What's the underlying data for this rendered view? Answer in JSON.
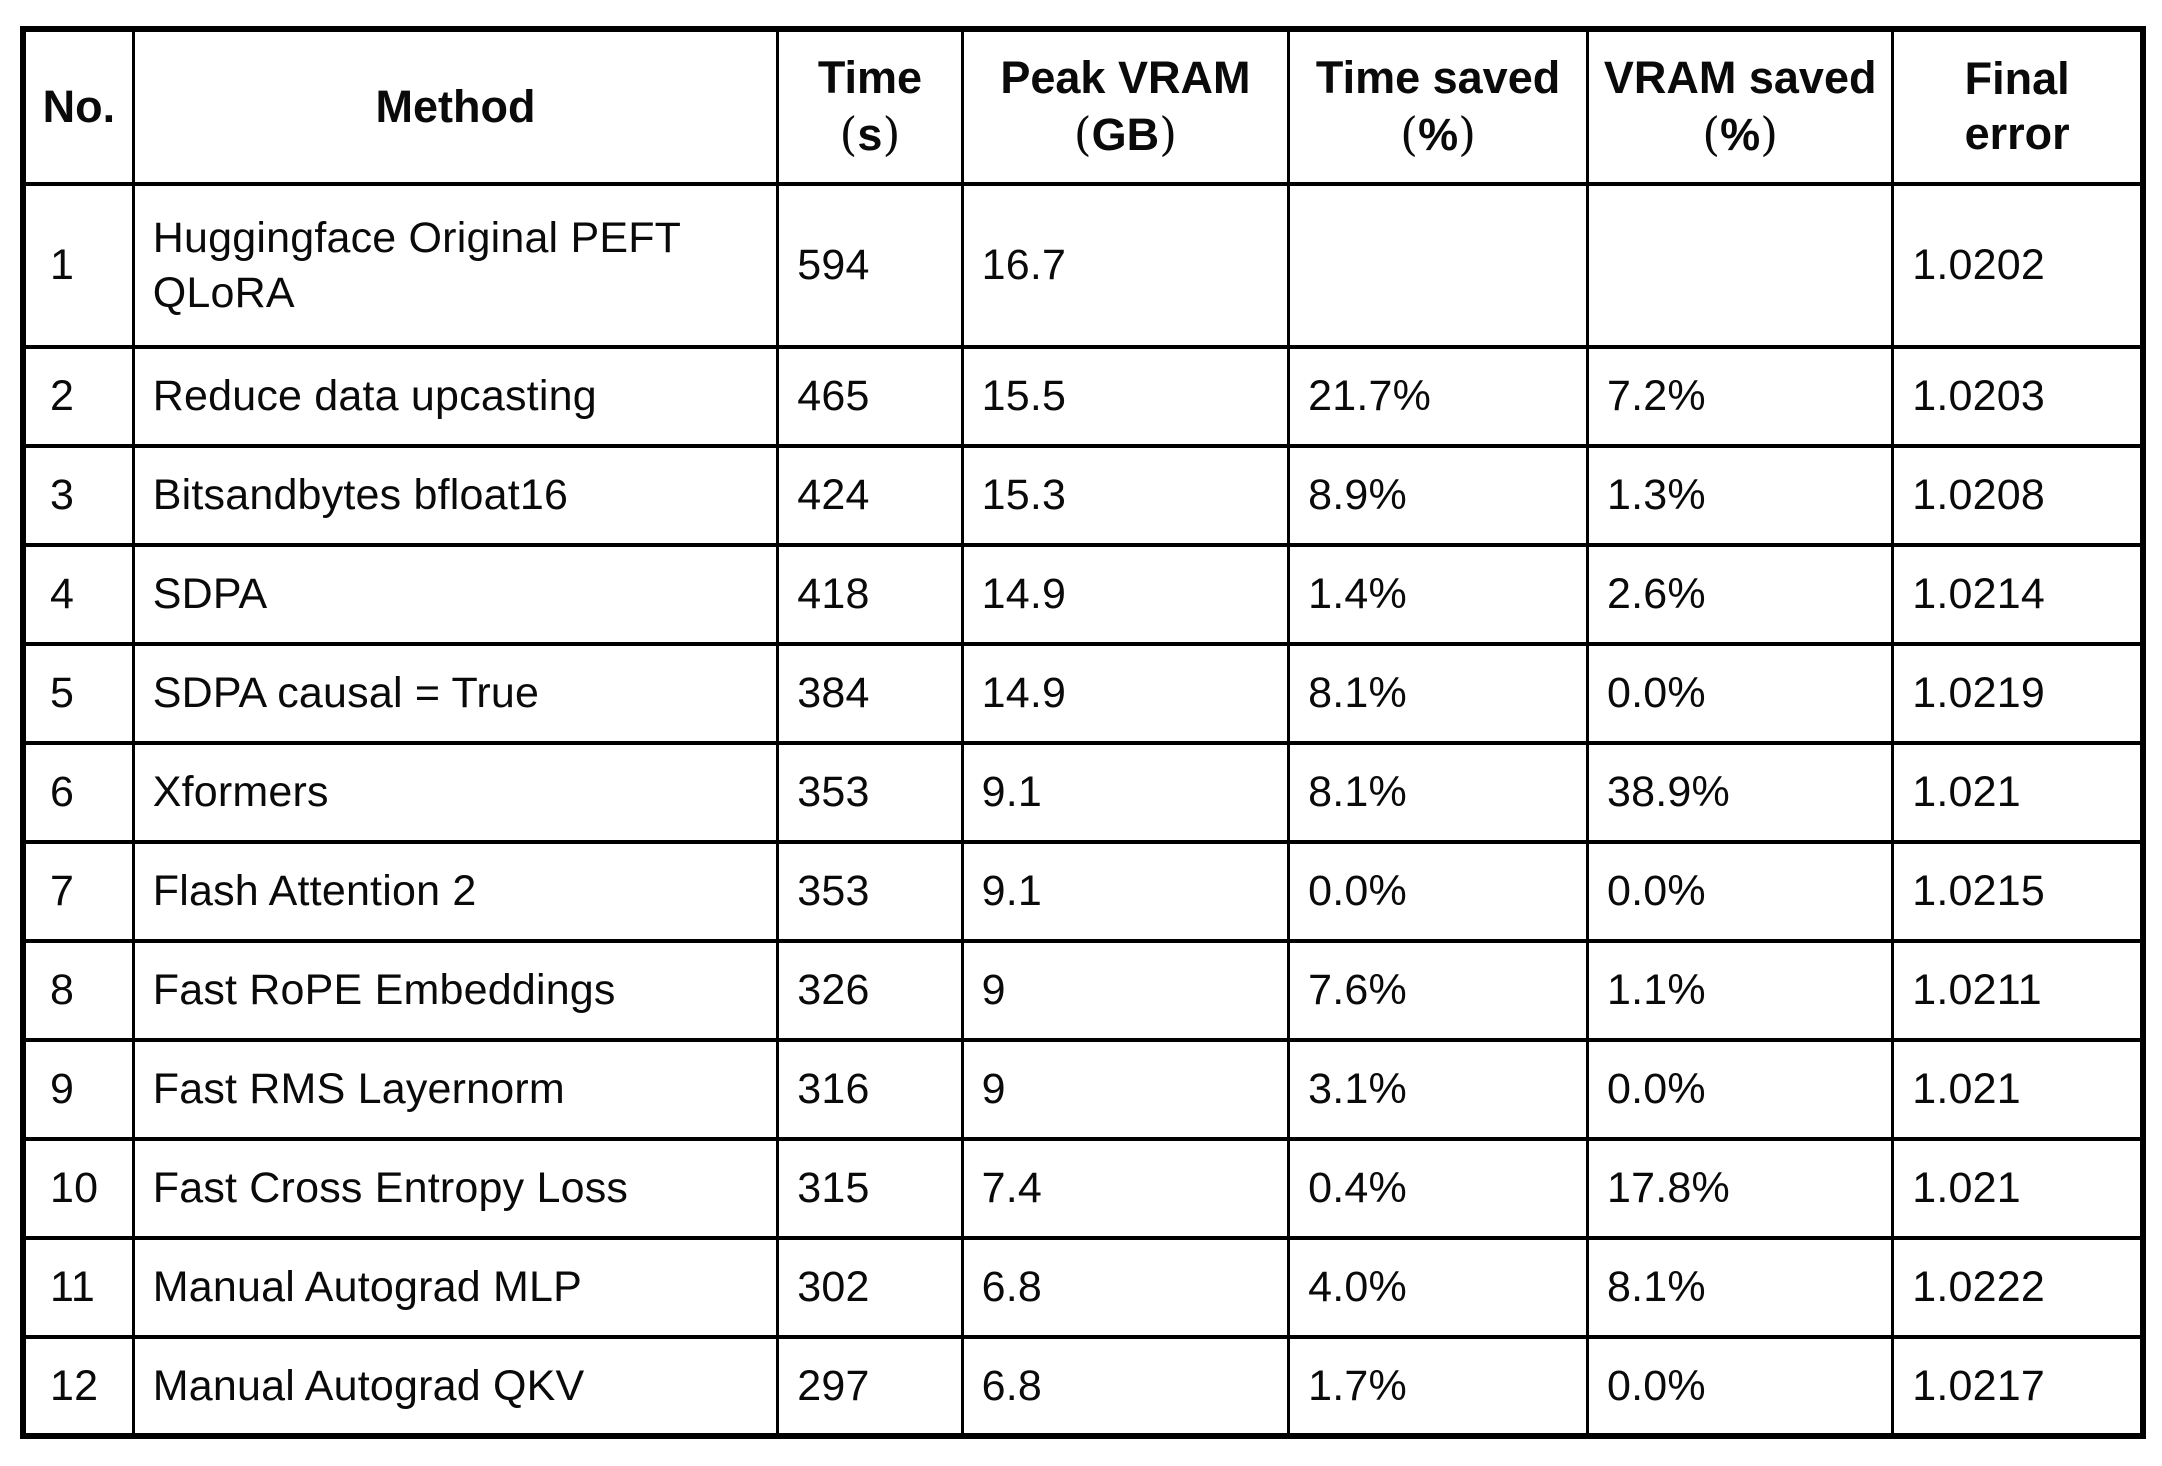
{
  "page": {
    "background_color": "#ffffff",
    "border_color": "#000000",
    "text_color": "#0a0a0a"
  },
  "chart_data": {
    "type": "table",
    "title": "",
    "columns": [
      {
        "key": "no",
        "lines": [
          "No."
        ]
      },
      {
        "key": "method",
        "lines": [
          "Method"
        ]
      },
      {
        "key": "time_s",
        "lines": [
          "Time",
          "(s)"
        ]
      },
      {
        "key": "peak_vram_gb",
        "lines": [
          "Peak VRAM",
          "(GB)"
        ]
      },
      {
        "key": "time_saved_pct",
        "lines": [
          "Time saved",
          "(%)"
        ]
      },
      {
        "key": "vram_saved_pct",
        "lines": [
          "VRAM saved",
          "(%)"
        ]
      },
      {
        "key": "final_error",
        "lines": [
          "Final",
          "error"
        ]
      }
    ],
    "rows": [
      [
        "1",
        "Huggingface Original PEFT QLoRA",
        "594",
        "16.7",
        "",
        "",
        "1.0202"
      ],
      [
        "2",
        "Reduce data upcasting",
        "465",
        "15.5",
        "21.7%",
        "7.2%",
        "1.0203"
      ],
      [
        "3",
        "Bitsandbytes bfloat16",
        "424",
        "15.3",
        "8.9%",
        "1.3%",
        "1.0208"
      ],
      [
        "4",
        "SDPA",
        "418",
        "14.9",
        "1.4%",
        "2.6%",
        "1.0214"
      ],
      [
        "5",
        "SDPA causal = True",
        "384",
        "14.9",
        "8.1%",
        "0.0%",
        "1.0219"
      ],
      [
        "6",
        "Xformers",
        "353",
        "9.1",
        "8.1%",
        "38.9%",
        "1.021"
      ],
      [
        "7",
        "Flash Attention 2",
        "353",
        "9.1",
        "0.0%",
        "0.0%",
        "1.0215"
      ],
      [
        "8",
        "Fast RoPE Embeddings",
        "326",
        "9",
        "7.6%",
        "1.1%",
        "1.0211"
      ],
      [
        "9",
        "Fast RMS Layernorm",
        "316",
        "9",
        "3.1%",
        "0.0%",
        "1.021"
      ],
      [
        "10",
        "Fast Cross Entropy Loss",
        "315",
        "7.4",
        "0.4%",
        "17.8%",
        "1.021"
      ],
      [
        "11",
        "Manual Autograd MLP",
        "302",
        "6.8",
        "4.0%",
        "8.1%",
        "1.0222"
      ],
      [
        "12",
        "Manual Autograd QKV",
        "297",
        "6.8",
        "1.7%",
        "0.0%",
        "1.0217"
      ]
    ]
  }
}
